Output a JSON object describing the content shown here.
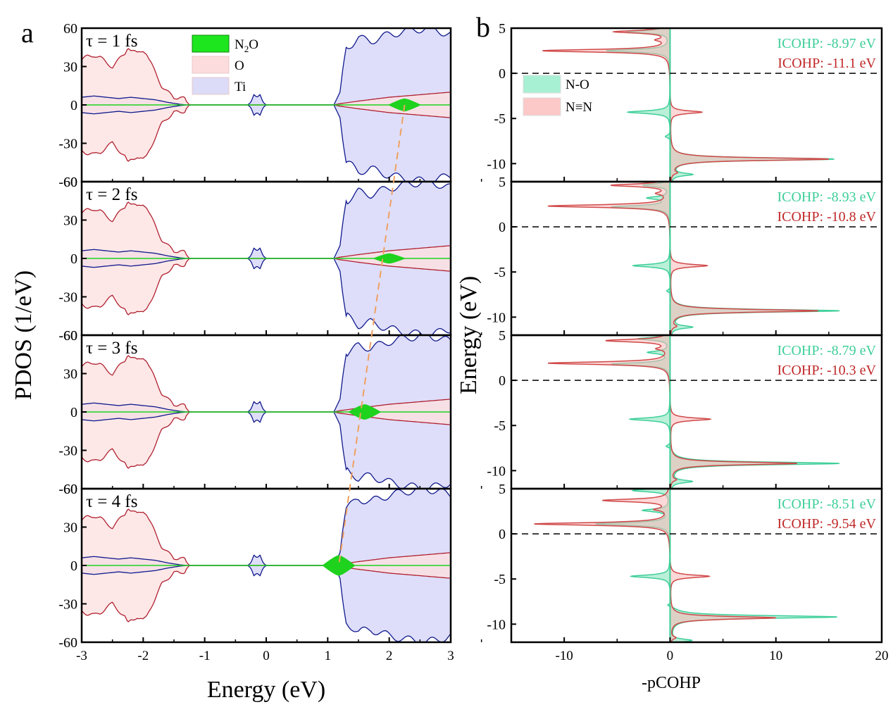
{
  "chart_data": [
    {
      "panel_label": "a",
      "type": "area",
      "xlabel": "Energy (eV)",
      "ylabel": "PDOS (1/eV)",
      "xlim": [
        -3,
        3
      ],
      "ylim": [
        -60,
        60
      ],
      "xticks": [
        "-3",
        "-2",
        "-1",
        "0",
        "1",
        "2",
        "3"
      ],
      "xtick_values": [
        -3,
        -2,
        -1,
        0,
        1,
        2,
        3
      ],
      "yticks": [
        "60",
        "30",
        "0",
        "-30",
        "-60"
      ],
      "ytick_values": [
        60,
        30,
        0,
        -30,
        -60
      ],
      "legend": {
        "placement": "top-center",
        "entries": [
          {
            "label_main": "N",
            "label_sub": "2",
            "label_tail": "O",
            "color": "#1ee61e"
          },
          {
            "label_main": "O",
            "label_sub": "",
            "label_tail": "",
            "color": "#fcdcdc"
          },
          {
            "label_main": "Ti",
            "label_sub": "",
            "label_tail": "",
            "color": "#dcdcf8"
          }
        ]
      },
      "colors": {
        "O_fill": "#fde0df",
        "O_line": "#b02030",
        "Ti_fill": "#dedefa",
        "Ti_line": "#101a8c",
        "N2O": "#1ed21e",
        "guide": "#f0a060"
      },
      "subplots": [
        {
          "label": "τ = 1 fs",
          "n2o_peak_energy": 2.25,
          "n2o_peak_height": 5
        },
        {
          "label": "τ = 2 fs",
          "n2o_peak_energy": 2.0,
          "n2o_peak_height": 4
        },
        {
          "label": "τ = 3 fs",
          "n2o_peak_energy": 1.6,
          "n2o_peak_height": 6
        },
        {
          "label": "τ = 4 fs",
          "n2o_peak_energy": 1.18,
          "n2o_peak_height": 8
        }
      ],
      "O_envelope": {
        "x": [
          -3,
          -2.9,
          -2.8,
          -2.7,
          -2.6,
          -2.5,
          -2.4,
          -2.3,
          -2.25,
          -2.2,
          -2.1,
          -2.0,
          -1.95,
          -1.9,
          -1.8,
          -1.7,
          -1.6,
          -1.5,
          -1.4,
          -1.35,
          -1.3,
          -1.25,
          -1.2,
          1.0,
          1.1,
          1.2,
          1.5,
          2.0,
          2.5,
          3.0
        ],
        "y": [
          35,
          38,
          39,
          37,
          33,
          30,
          35,
          40,
          46,
          43,
          40,
          43,
          41,
          35,
          25,
          15,
          10,
          5,
          7,
          6,
          3,
          0,
          0,
          0,
          0,
          1,
          3,
          6,
          8,
          10
        ]
      },
      "Ti_envelope": {
        "x": [
          -3,
          -2.8,
          -2.6,
          -2.4,
          -2.2,
          -2.0,
          -1.8,
          -1.6,
          -1.4,
          -1.3,
          -0.3,
          -0.25,
          -0.2,
          -0.15,
          -0.1,
          -0.05,
          0,
          0.05,
          0.1,
          1.1,
          1.2,
          1.25,
          1.3,
          1.4,
          1.5,
          1.7,
          2.0,
          2.3,
          2.6,
          2.8,
          3.0
        ],
        "y": [
          6,
          7,
          6,
          5,
          6,
          5,
          4,
          2,
          0.5,
          0,
          0,
          2,
          8,
          6,
          8,
          2,
          0,
          0,
          0,
          0,
          10,
          30,
          45,
          48,
          52,
          50,
          55,
          58,
          60,
          58,
          55
        ]
      },
      "guide_line": {
        "from": [
          2.25,
          3,
          60
        ],
        "to": [
          1.18,
          3,
          0
        ],
        "style": "dashed"
      }
    },
    {
      "panel_label": "b",
      "type": "area",
      "xlabel": "-pCOHP",
      "ylabel": "Energy (eV)",
      "xlim": [
        -15,
        20
      ],
      "ylim": [
        -12,
        5
      ],
      "xticks": [
        "-10",
        "0",
        "10",
        "20"
      ],
      "xtick_values": [
        -10,
        0,
        10,
        20
      ],
      "yticks": [
        "5",
        "0",
        "-5",
        "-10"
      ],
      "ytick_values": [
        5,
        0,
        -5,
        -10
      ],
      "legend": {
        "placement": "top-left",
        "entries": [
          {
            "label": "N-O",
            "color": "#a8f0d4"
          },
          {
            "label": "N≡N",
            "color": "#fcc8c8"
          }
        ]
      },
      "colors": {
        "NO_fill": "#9ce8c8",
        "NO_line": "#3ecf9a",
        "NN_fill": "#f9b8b8",
        "NN_line": "#d04848",
        "overlap": "#9aa888",
        "fermi": "#000000"
      },
      "subplots": [
        {
          "icohp_NO": "ICOHP: -8.97 eV",
          "icohp_NN": "ICOHP: -11.1 eV",
          "NN_peaks": [
            [
              4.6,
              -5.2
            ],
            [
              3.7,
              -1.0
            ],
            [
              2.5,
              -12.0
            ],
            [
              -4.3,
              3.0
            ],
            [
              -9.5,
              15.0
            ],
            [
              -11.0,
              0.5
            ]
          ],
          "NO_peaks": [
            [
              4.6,
              -4.0
            ],
            [
              2.5,
              -6.0
            ],
            [
              -4.3,
              -4.0
            ],
            [
              -7.0,
              -0.5
            ],
            [
              -9.5,
              15.5
            ],
            [
              -11.2,
              2.0
            ]
          ]
        },
        {
          "icohp_NO": "ICOHP: -8.93 eV",
          "icohp_NN": "ICOHP: -10.8 eV",
          "NN_peaks": [
            [
              4.6,
              -5.5
            ],
            [
              3.7,
              -1.0
            ],
            [
              2.3,
              -11.5
            ],
            [
              -4.3,
              3.5
            ],
            [
              -9.3,
              14.0
            ],
            [
              -11.0,
              0.5
            ]
          ],
          "NO_peaks": [
            [
              4.6,
              -2.5
            ],
            [
              3.2,
              -2.0
            ],
            [
              2.2,
              -5.5
            ],
            [
              -4.3,
              -3.5
            ],
            [
              -7.1,
              -0.4
            ],
            [
              -9.3,
              16.0
            ],
            [
              -11.1,
              2.0
            ]
          ]
        },
        {
          "icohp_NO": "ICOHP: -8.79 eV",
          "icohp_NN": "ICOHP: -10.3 eV",
          "NN_peaks": [
            [
              4.4,
              -6.0
            ],
            [
              3.5,
              -1.0
            ],
            [
              1.9,
              -11.5
            ],
            [
              -4.3,
              3.8
            ],
            [
              -9.2,
              12.0
            ],
            [
              -11.0,
              0.5
            ]
          ],
          "NO_peaks": [
            [
              4.6,
              -3.0
            ],
            [
              3.1,
              -2.0
            ],
            [
              1.8,
              -5.5
            ],
            [
              -4.3,
              -3.8
            ],
            [
              -7.3,
              -0.5
            ],
            [
              -9.2,
              16.0
            ],
            [
              -11.2,
              2.0
            ]
          ]
        },
        {
          "icohp_NO": "ICOHP: -8.51 eV",
          "icohp_NN": "ICOHP: -9.54 eV",
          "NN_peaks": [
            [
              3.7,
              -6.3
            ],
            [
              2.7,
              -1.2
            ],
            [
              1.1,
              -12.8
            ],
            [
              -4.7,
              3.7
            ],
            [
              -9.3,
              10.0
            ],
            [
              -11.5,
              0.5
            ]
          ],
          "NO_peaks": [
            [
              4.8,
              -3.5
            ],
            [
              2.6,
              -2.5
            ],
            [
              1.1,
              -7.0
            ],
            [
              -4.7,
              -3.7
            ],
            [
              -7.9,
              -0.5
            ],
            [
              -9.2,
              15.8
            ],
            [
              -11.8,
              2.0
            ]
          ]
        }
      ]
    }
  ]
}
